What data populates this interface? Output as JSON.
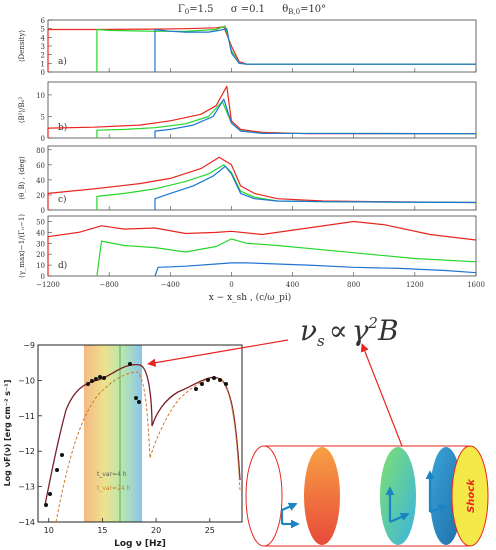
{
  "header": {
    "gamma": "Γ",
    "gamma_sub": "0",
    "gamma_val": "=1.5",
    "sigma": "σ =0.1",
    "theta": "θ",
    "theta_sub": "B,0",
    "theta_val": "=10°"
  },
  "panels": [
    {
      "tag": "a)",
      "ylabel": "⟨Density⟩",
      "yticks": [
        "0",
        "1",
        "2",
        "3",
        "4",
        "5",
        "6"
      ],
      "ylim": [
        0,
        6
      ]
    },
    {
      "tag": "b)",
      "ylabel": "⟨B²⟩/B₀²",
      "yticks": [
        "0",
        "5",
        "10"
      ],
      "ylim": [
        0,
        13
      ]
    },
    {
      "tag": "c)",
      "ylabel": "⟨θ_B⟩ , (deg)",
      "yticks": [
        "0",
        "20",
        "40",
        "60",
        "80"
      ],
      "ylim": [
        0,
        85
      ]
    },
    {
      "tag": "d)",
      "ylabel": "⟨γ_max⟩−1/(Γ₀−1)",
      "yticks": [
        "0",
        "10",
        "20",
        "30",
        "40",
        "50"
      ],
      "ylim": [
        0,
        55
      ]
    }
  ],
  "xaxis": {
    "ticks": [
      "−1200",
      "−800",
      "−400",
      "0",
      "400",
      "800",
      "1200",
      "1600"
    ],
    "tick_values": [
      -1200,
      -800,
      -400,
      0,
      400,
      800,
      1200,
      1600
    ],
    "xlim": [
      -1200,
      1600
    ],
    "label": "x − x_sh , (c/ω_pi)"
  },
  "sed": {
    "ylabel": "Log νF(ν)  [erg cm⁻² s⁻¹]",
    "xlabel": "Log ν [Hz]",
    "yticks": [
      "−9",
      "−10",
      "−11",
      "−12",
      "−13",
      "−14"
    ],
    "xticks": [
      "10",
      "15",
      "20",
      "25"
    ],
    "legend": [
      {
        "text": "t_var=4  h",
        "color": "#555555"
      },
      {
        "text": "t_var=24 h",
        "color": "#d07a2a"
      }
    ]
  },
  "formula": {
    "nu": "ν",
    "sub": "s",
    "rel": "∝",
    "gamma": "γ",
    "sup": "2",
    "B": "B"
  },
  "jet": {
    "shock_label": "Shock"
  },
  "colors": {
    "red": "#e8261f",
    "green": "#27d62a",
    "blue": "#1f74d6",
    "arrow_blue": "#1a84c4",
    "shock_fill": "#f5e94a"
  },
  "chart_data": {
    "type": "line",
    "title": "",
    "x_range": [
      -1200,
      1600
    ],
    "series": [
      {
        "panel": "a",
        "name": "red",
        "x": [
          -1200,
          -900,
          -500,
          -300,
          -100,
          -50,
          0,
          50,
          100,
          1600
        ],
        "values": [
          4.9,
          4.9,
          4.95,
          5.0,
          5.1,
          5.2,
          3.0,
          1.2,
          0.9,
          0.9
        ]
      },
      {
        "panel": "a",
        "name": "green",
        "x": [
          -880,
          -800,
          -500,
          -300,
          -100,
          -40,
          0,
          50,
          100,
          1600
        ],
        "values": [
          4.9,
          4.8,
          4.7,
          4.7,
          4.9,
          5.3,
          2.5,
          1.0,
          0.9,
          0.9
        ]
      },
      {
        "panel": "a",
        "name": "blue",
        "x": [
          -500,
          -400,
          -300,
          -150,
          -80,
          -30,
          0,
          50,
          100,
          1600
        ],
        "values": [
          4.9,
          4.7,
          4.6,
          4.6,
          4.8,
          5.0,
          2.2,
          1.0,
          0.9,
          0.9
        ]
      },
      {
        "panel": "b",
        "name": "red",
        "x": [
          -1200,
          -900,
          -600,
          -400,
          -200,
          -100,
          -30,
          0,
          60,
          200,
          500,
          1600
        ],
        "values": [
          2.3,
          2.5,
          3.0,
          4.0,
          5.5,
          7.5,
          12.0,
          4.0,
          2.0,
          1.3,
          1.0,
          1.0
        ]
      },
      {
        "panel": "b",
        "name": "green",
        "x": [
          -880,
          -700,
          -500,
          -300,
          -150,
          -60,
          0,
          60,
          200,
          1600
        ],
        "values": [
          1.8,
          2.0,
          2.4,
          3.3,
          5.0,
          8.5,
          3.5,
          1.7,
          1.1,
          1.0
        ]
      },
      {
        "panel": "b",
        "name": "blue",
        "x": [
          -500,
          -400,
          -250,
          -120,
          -50,
          0,
          60,
          200,
          1600
        ],
        "values": [
          1.6,
          2.0,
          3.0,
          5.0,
          9.0,
          3.5,
          1.6,
          1.1,
          1.0
        ]
      },
      {
        "panel": "c",
        "name": "red",
        "x": [
          -1200,
          -900,
          -600,
          -400,
          -200,
          -80,
          0,
          60,
          150,
          300,
          600,
          1000,
          1600
        ],
        "values": [
          22,
          28,
          35,
          42,
          55,
          70,
          60,
          32,
          22,
          15,
          12,
          11,
          10
        ]
      },
      {
        "panel": "c",
        "name": "green",
        "x": [
          -880,
          -700,
          -500,
          -300,
          -150,
          -50,
          0,
          60,
          150,
          300,
          600,
          1600
        ],
        "values": [
          18,
          22,
          28,
          38,
          48,
          60,
          50,
          25,
          17,
          12,
          11,
          10
        ]
      },
      {
        "panel": "c",
        "name": "blue",
        "x": [
          -500,
          -400,
          -250,
          -120,
          -40,
          0,
          60,
          150,
          300,
          600,
          1600
        ],
        "values": [
          15,
          22,
          32,
          45,
          58,
          48,
          22,
          15,
          12,
          11,
          10
        ]
      },
      {
        "panel": "d",
        "name": "red",
        "x": [
          -1200,
          -1000,
          -850,
          -700,
          -500,
          -300,
          -100,
          0,
          200,
          500,
          800,
          1000,
          1300,
          1600
        ],
        "values": [
          36,
          40,
          46,
          43,
          44,
          39,
          40,
          41,
          38,
          44,
          50,
          47,
          38,
          33
        ]
      },
      {
        "panel": "d",
        "name": "green",
        "x": [
          -880,
          -850,
          -700,
          -500,
          -300,
          -100,
          0,
          100,
          300,
          600,
          900,
          1200,
          1600
        ],
        "values": [
          0,
          32,
          28,
          26,
          22,
          27,
          34,
          30,
          28,
          24,
          20,
          16,
          13
        ]
      },
      {
        "panel": "d",
        "name": "blue",
        "x": [
          -500,
          -480,
          -300,
          -100,
          0,
          100,
          300,
          500,
          800,
          1100,
          1400,
          1600
        ],
        "values": [
          0,
          8,
          9,
          11,
          12,
          12,
          11,
          10,
          8,
          7,
          5,
          3
        ]
      }
    ]
  }
}
